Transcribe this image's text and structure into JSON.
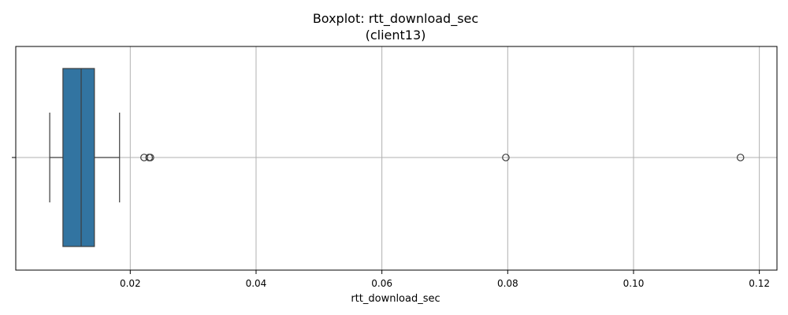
{
  "chart_data": {
    "type": "boxplot",
    "title": "Boxplot: rtt_download_sec",
    "subtitle": "(client13)",
    "xlabel": "rtt_download_sec",
    "ylabel": "",
    "xlim": [
      0.0018,
      0.1228
    ],
    "x_ticks": [
      0.02,
      0.04,
      0.06,
      0.08,
      0.1,
      0.12
    ],
    "x_tick_labels": [
      "0.02",
      "0.04",
      "0.06",
      "0.08",
      "0.10",
      "0.12"
    ],
    "grid": true,
    "box": {
      "whisker_low": 0.0072,
      "q1": 0.0093,
      "median": 0.0122,
      "q3": 0.0143,
      "whisker_high": 0.0183
    },
    "outliers": [
      0.0222,
      0.023,
      0.0232,
      0.0797,
      0.117
    ],
    "colors": {
      "box_fill": "#3274a1",
      "line": "#3d3d3d",
      "grid": "#b0b0b0"
    }
  }
}
